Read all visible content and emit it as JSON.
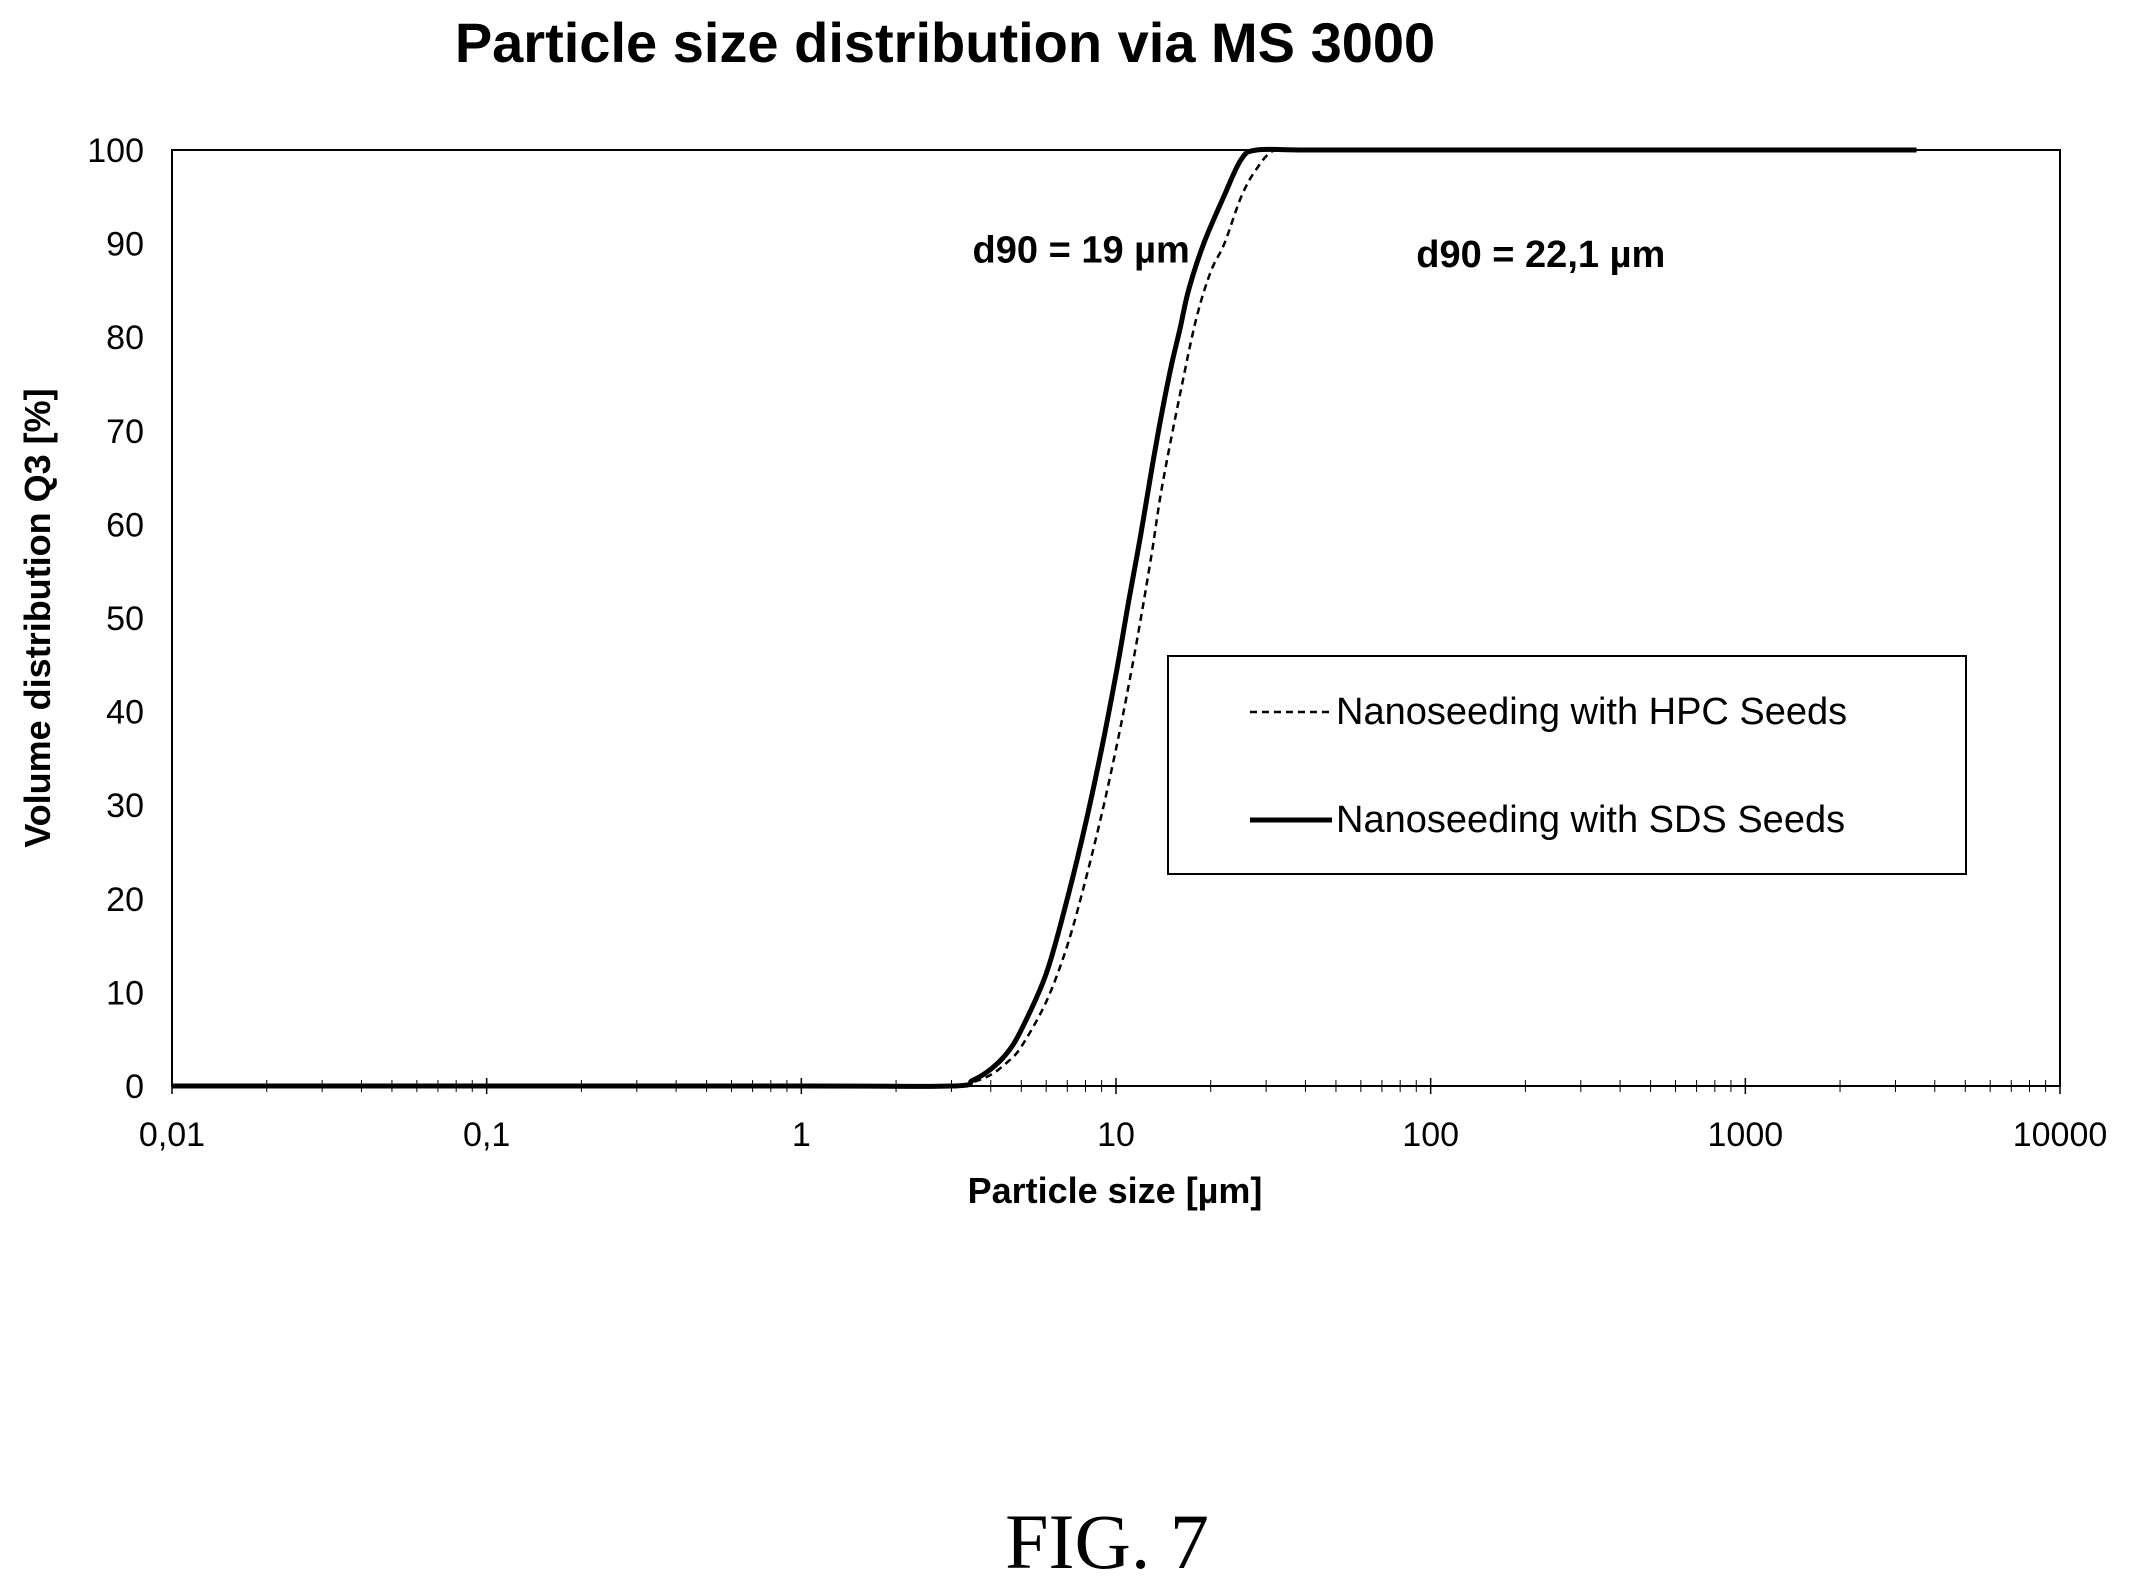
{
  "chart_data": {
    "type": "line",
    "title": "Particle size distribution via MS 3000",
    "xlabel": "Particle size [µm]",
    "ylabel": "Volume distribution Q3 [%]",
    "xscale": "log",
    "xlim": [
      0.01,
      10000
    ],
    "ylim": [
      0,
      100
    ],
    "x_ticks": [
      0.01,
      0.1,
      1,
      10,
      100,
      1000,
      10000
    ],
    "x_tick_labels": [
      "0,01",
      "0,1",
      "1",
      "10",
      "100",
      "1000",
      "10000"
    ],
    "y_ticks": [
      0,
      10,
      20,
      30,
      40,
      50,
      60,
      70,
      80,
      90,
      100
    ],
    "y_tick_labels": [
      "0",
      "10",
      "20",
      "30",
      "40",
      "50",
      "60",
      "70",
      "80",
      "90",
      "100"
    ],
    "grid": false,
    "legend_position": "center-right",
    "series": [
      {
        "name": "Nanoseeding with HPC Seeds",
        "style": "dashed",
        "color": "#000000",
        "x": [
          0.01,
          1,
          3,
          3.5,
          4,
          4.5,
          5,
          6,
          7,
          8,
          9,
          10,
          11,
          12,
          13,
          14,
          16,
          18,
          20,
          22.1,
          25,
          28,
          32,
          40,
          100,
          1000,
          3500
        ],
        "y": [
          0,
          0,
          0,
          0.4,
          1.2,
          2.5,
          4.2,
          9,
          15,
          22,
          29,
          36,
          43,
          50,
          57,
          64,
          74,
          82,
          87,
          90,
          95,
          98,
          100,
          100,
          100,
          100,
          100
        ]
      },
      {
        "name": "Nanoseeding with SDS Seeds",
        "style": "solid",
        "color": "#000000",
        "x": [
          0.01,
          1,
          3,
          3.5,
          4,
          4.5,
          5,
          6,
          7,
          8,
          9,
          10,
          11,
          12,
          13,
          14,
          15,
          16,
          17,
          19,
          22,
          25,
          28,
          40,
          100,
          1000,
          3500
        ],
        "y": [
          0,
          0,
          0,
          0.6,
          1.8,
          3.5,
          6,
          12,
          20,
          28,
          36,
          44,
          52,
          59,
          66,
          72,
          77,
          81,
          85,
          90,
          95,
          99,
          100,
          100,
          100,
          100,
          100
        ]
      }
    ],
    "annotations": [
      {
        "text": "d90 = 19 µm",
        "x": 3.5,
        "y": 88
      },
      {
        "text": "d90 = 22,1 µm",
        "x": 90,
        "y": 87.5
      }
    ]
  },
  "figure_label": "FIG. 7"
}
